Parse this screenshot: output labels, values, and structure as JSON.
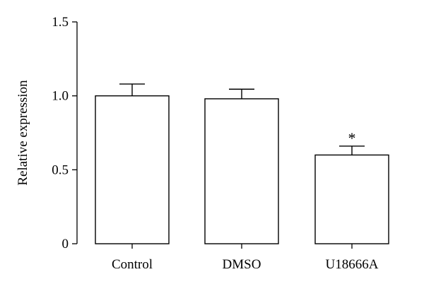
{
  "chart_data": {
    "type": "bar",
    "categories": [
      "Control",
      "DMSO",
      "U18666A"
    ],
    "values": [
      1.0,
      0.98,
      0.6
    ],
    "error_upper": [
      0.08,
      0.065,
      0.06
    ],
    "annotations": [
      "",
      "",
      "*"
    ],
    "ylabel": "Relative expression",
    "xlabel": "",
    "ylim": [
      0,
      1.5
    ],
    "y_ticks": [
      0,
      0.5,
      1.0,
      1.5
    ],
    "y_tick_labels": [
      "0",
      "0.5",
      "1.0",
      "1.5"
    ],
    "grid": false,
    "colors": {
      "bar_fill": "#ffffff",
      "stroke": "#000000"
    }
  }
}
